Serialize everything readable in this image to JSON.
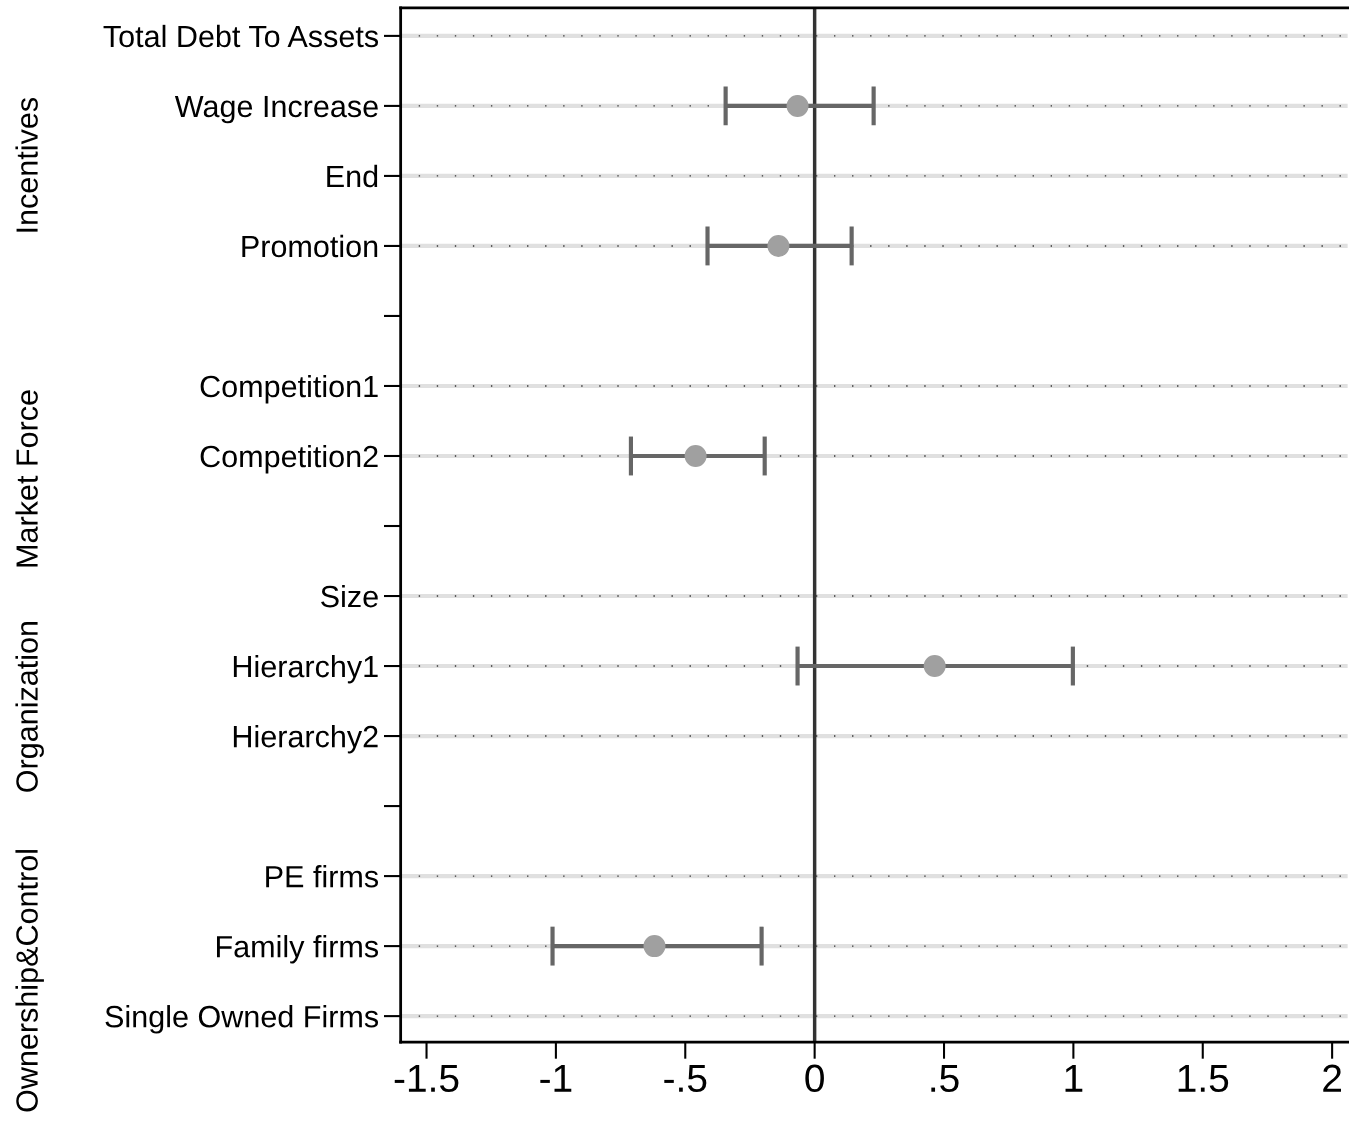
{
  "chart_data": {
    "type": "scatter",
    "orientation": "horizontal",
    "categories": [
      "Total Debt To Assets",
      "Wage Increase",
      "End",
      "Promotion",
      null,
      "Competition1",
      "Competition2",
      null,
      "Size",
      "Hierarchy1",
      "Hierarchy2",
      null,
      "PE firms",
      "Family firms",
      "Single Owned Firms"
    ],
    "series": [
      {
        "color": "#a0a0a0",
        "values": [
          null,
          -0.066,
          null,
          -0.14,
          null,
          null,
          -0.46,
          null,
          null,
          0.464,
          null,
          null,
          null,
          -0.619,
          null
        ],
        "errors": [
          null,
          [
            -0.344,
            0.228
          ],
          null,
          [
            -0.414,
            0.143
          ],
          null,
          null,
          [
            -0.71,
            -0.193
          ],
          null,
          null,
          [
            -0.066,
            0.998
          ],
          null,
          null,
          null,
          [
            -1.013,
            -0.205
          ],
          null
        ]
      }
    ],
    "xlim": [
      -1.6,
      2.06
    ],
    "xticks": [
      -1.5,
      -1,
      {
        "value": -0.5,
        "label": "-.5"
      },
      0,
      {
        "value": 0.5,
        "label": ".5"
      },
      1,
      1.5,
      2
    ],
    "ref_lines": [
      {
        "axis": "x",
        "value": 0,
        "color": "#333333"
      }
    ],
    "grid": "y",
    "marker": "circle",
    "annotations": [
      "Incentives",
      "Market Force",
      "Organization",
      "Ownership&Control"
    ]
  }
}
